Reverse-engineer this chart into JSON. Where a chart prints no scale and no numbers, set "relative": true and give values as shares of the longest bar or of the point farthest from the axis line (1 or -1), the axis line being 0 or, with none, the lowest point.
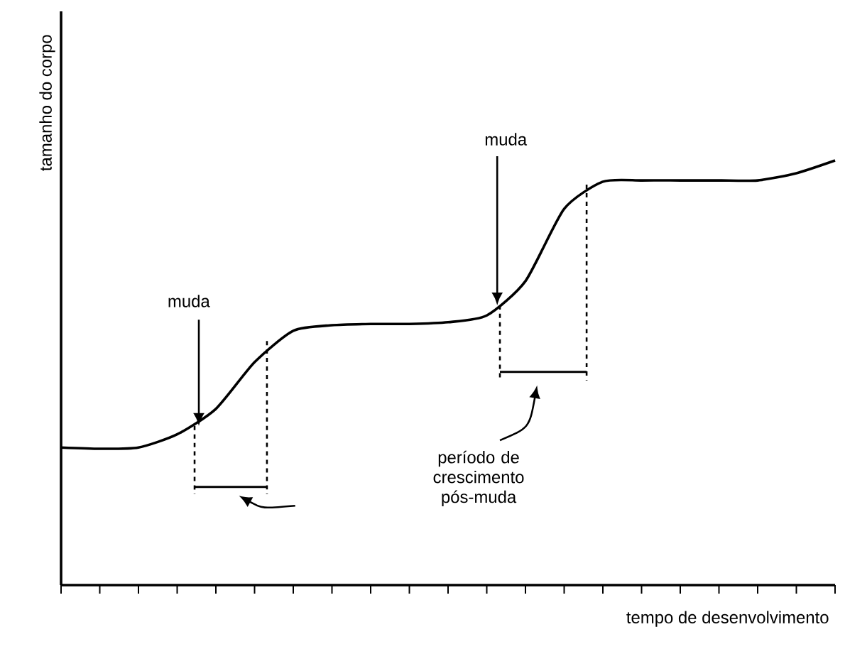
{
  "chart_data": {
    "type": "line",
    "relative": true,
    "xlabel": "tempo de desenvolvimento",
    "ylabel": "tamanho do corpo",
    "categories": [
      null,
      null,
      null,
      null,
      null,
      null,
      null,
      null,
      null,
      null,
      null,
      null,
      null,
      null,
      null,
      null,
      null,
      null,
      null,
      null,
      null
    ],
    "series": [
      {
        "color": "#000000",
        "values": [
          0.324,
          0.321,
          0.324,
          0.355,
          0.415,
          0.525,
          0.599,
          0.612,
          0.615,
          0.615,
          0.619,
          0.635,
          0.716,
          0.886,
          0.95,
          0.953,
          0.953,
          0.953,
          0.953,
          0.97,
          1.0
        ]
      }
    ],
    "annotations": [
      "muda",
      "muda",
      "período de crescimento pós-muda"
    ],
    "marker": "none",
    "line_style": "solid",
    "grid": false
  }
}
